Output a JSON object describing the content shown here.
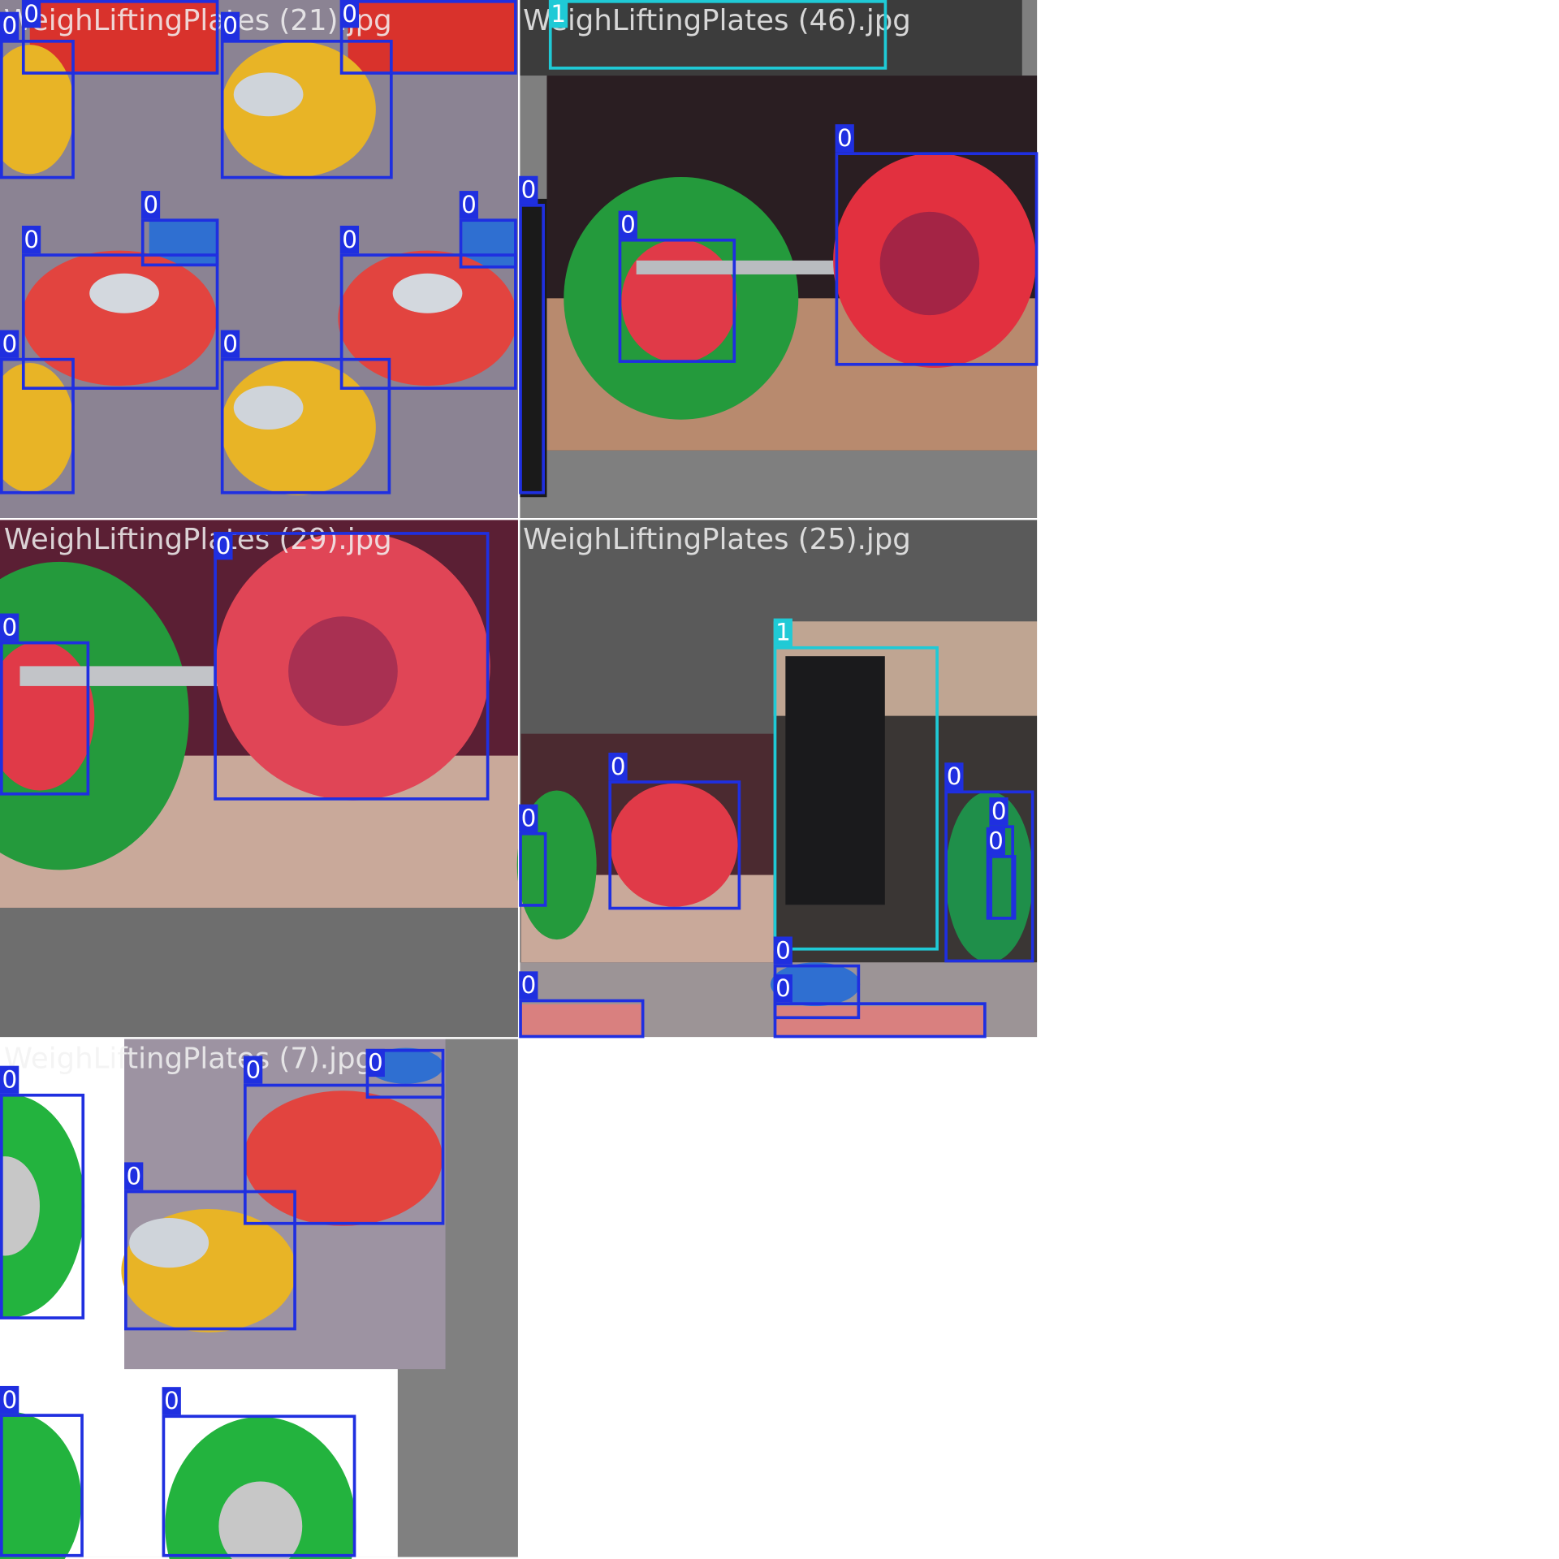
{
  "tiles": [
    {
      "filename": "WeighLiftingPlates (21).jpg",
      "boxes": [
        {
          "label": "0"
        },
        {
          "label": "0"
        },
        {
          "label": "0"
        },
        {
          "label": "0"
        },
        {
          "label": "0"
        },
        {
          "label": "0"
        },
        {
          "label": "0"
        },
        {
          "label": "0"
        },
        {
          "label": "0"
        },
        {
          "label": "0"
        }
      ]
    },
    {
      "filename": "WeighLiftingPlates (46).jpg",
      "boxes": [
        {
          "label": "1"
        },
        {
          "label": "0"
        },
        {
          "label": "0"
        },
        {
          "label": "0"
        }
      ]
    },
    {
      "filename": "WeighLiftingPlates (29).jpg",
      "boxes": [
        {
          "label": "0"
        },
        {
          "label": "0"
        }
      ]
    },
    {
      "filename": "WeighLiftingPlates (25).jpg",
      "boxes": [
        {
          "label": "1"
        },
        {
          "label": "0"
        },
        {
          "label": "0"
        },
        {
          "label": "0"
        },
        {
          "label": "0"
        },
        {
          "label": "0"
        },
        {
          "label": "0"
        },
        {
          "label": "0"
        },
        {
          "label": "0"
        }
      ]
    },
    {
      "filename": "WeighLiftingPlates (7).jpg",
      "boxes": [
        {
          "label": "0"
        },
        {
          "label": "0"
        },
        {
          "label": "0"
        },
        {
          "label": "0"
        },
        {
          "label": "0"
        },
        {
          "label": "0"
        }
      ]
    }
  ]
}
